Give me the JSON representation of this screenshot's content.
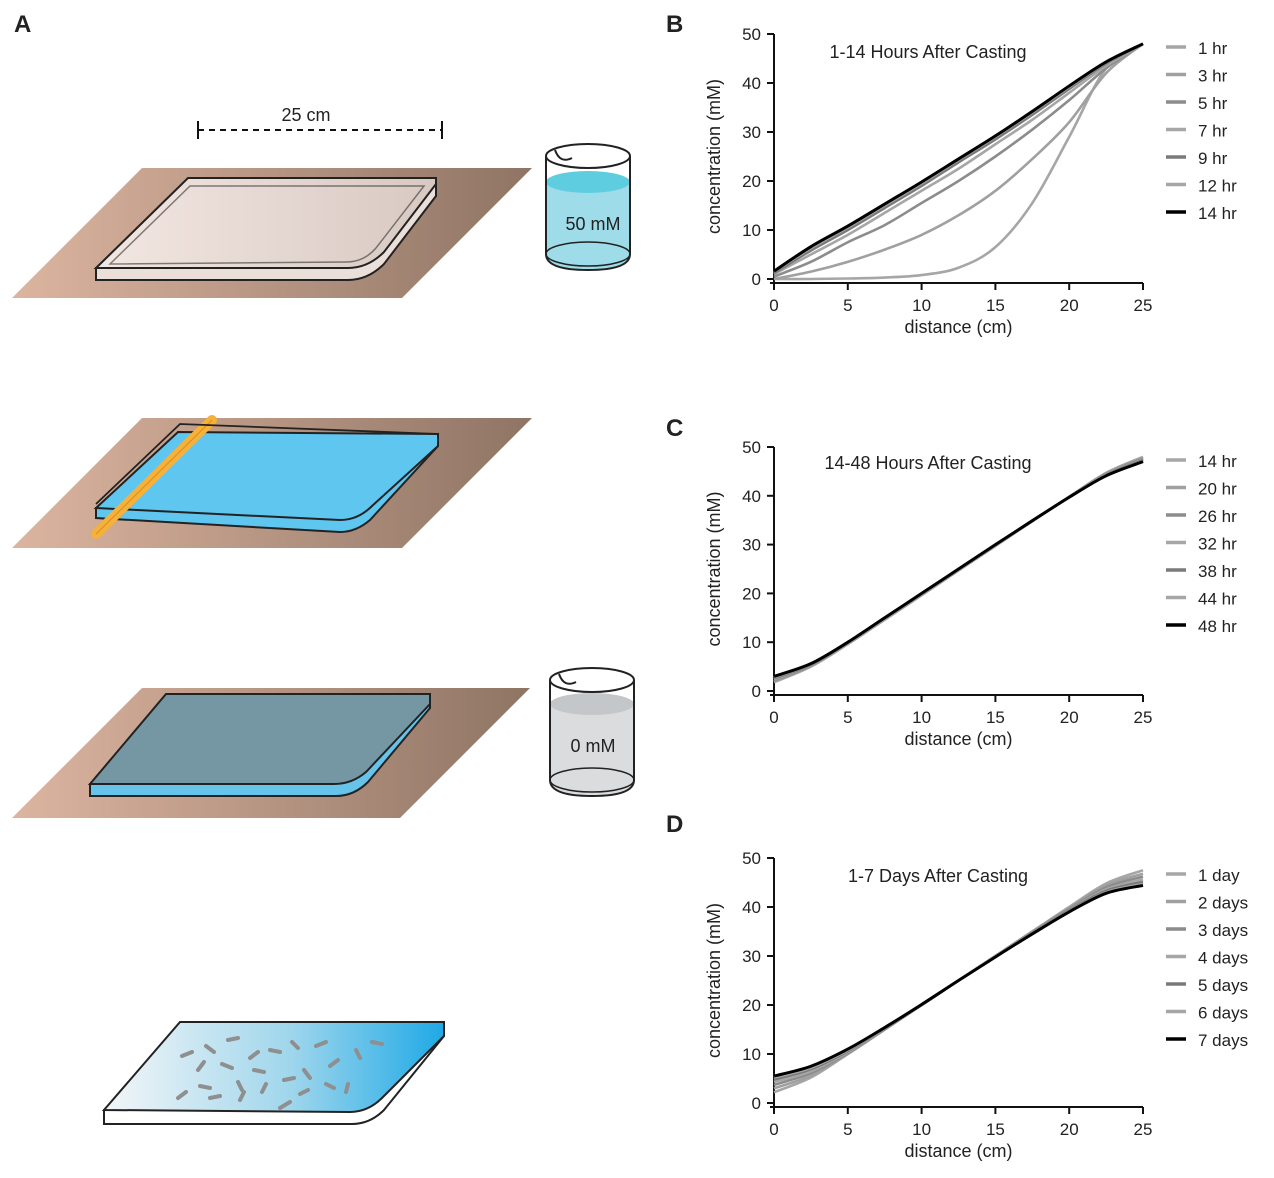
{
  "panel_labels": {
    "a": "A",
    "b": "B",
    "c": "C",
    "d": "D"
  },
  "illustration": {
    "scale_label": "25 cm",
    "beaker_high_label": "50 mM",
    "beaker_low_label": "0 mM",
    "colors": {
      "bench_light": "#d4ab96",
      "bench_dark": "#957a6a",
      "gel_blue": "#5fc8ef",
      "gel_dark": "#7b9ba8",
      "spacer_orange": "#f7b23b",
      "beaker_blue": "#9adce8",
      "beaker_gray": "#d9dbdc",
      "worm_gray": "#8f8f8f"
    }
  },
  "chart_data": [
    {
      "type": "line",
      "title": "1-14 Hours After Casting",
      "xlabel": "distance (cm)",
      "ylabel": "concentration (mM)",
      "xlim": [
        0,
        25
      ],
      "ylim": [
        0,
        50
      ],
      "xticks": [
        "0",
        "5",
        "10",
        "15",
        "20",
        "25"
      ],
      "yticks": [
        "0",
        "10",
        "20",
        "30",
        "40",
        "50"
      ],
      "legend_position": "right",
      "x": [
        0,
        2.5,
        5,
        7.5,
        10,
        12.5,
        15,
        17.5,
        20,
        22.5,
        25
      ],
      "series": [
        {
          "name": "1 hr",
          "color": "#a6a6a6",
          "values": [
            0,
            0,
            0.1,
            0.3,
            0.8,
            2.3,
            6.5,
            15.5,
            29,
            43,
            48
          ]
        },
        {
          "name": "3 hr",
          "color": "#a0a0a0",
          "values": [
            0,
            1.5,
            3.5,
            6,
            9,
            13,
            18,
            24.5,
            32,
            42,
            48
          ]
        },
        {
          "name": "5 hr",
          "color": "#8c8c8c",
          "values": [
            0.5,
            3.5,
            7.5,
            11,
            15.5,
            20,
            25,
            30.5,
            36.5,
            43,
            48
          ]
        },
        {
          "name": "7 hr",
          "color": "#a6a6a6",
          "values": [
            1,
            5,
            9,
            13.5,
            18,
            22.5,
            27.5,
            32.5,
            38,
            43.5,
            48
          ]
        },
        {
          "name": "9 hr",
          "color": "#7a7a7a",
          "values": [
            1.2,
            5.8,
            10,
            14.5,
            19,
            23.8,
            28.5,
            33.5,
            38.8,
            44,
            48
          ]
        },
        {
          "name": "12 hr",
          "color": "#a6a6a6",
          "values": [
            1.5,
            6.3,
            10.5,
            15,
            19.5,
            24.3,
            29,
            34,
            39.2,
            44.2,
            48
          ]
        },
        {
          "name": "14 hr",
          "color": "#000000",
          "values": [
            1.6,
            6.6,
            10.8,
            15.3,
            19.8,
            24.5,
            29.2,
            34.2,
            39.4,
            44.3,
            48
          ]
        }
      ]
    },
    {
      "type": "line",
      "title": "14-48 Hours After Casting",
      "xlabel": "distance (cm)",
      "ylabel": "concentration (mM)",
      "xlim": [
        0,
        25
      ],
      "ylim": [
        0,
        50
      ],
      "xticks": [
        "0",
        "5",
        "10",
        "15",
        "20",
        "25"
      ],
      "yticks": [
        "0",
        "10",
        "20",
        "30",
        "40",
        "50"
      ],
      "legend_position": "right",
      "x": [
        0,
        2.5,
        5,
        7.5,
        10,
        12.5,
        15,
        17.5,
        20,
        22.5,
        25
      ],
      "series": [
        {
          "name": "14 hr",
          "color": "#a6a6a6",
          "values": [
            1.8,
            5,
            9.6,
            14.6,
            19.6,
            24.7,
            29.7,
            34.8,
            39.8,
            44.7,
            48
          ]
        },
        {
          "name": "20 hr",
          "color": "#a0a0a0",
          "values": [
            2,
            5.1,
            9.7,
            14.7,
            19.7,
            24.7,
            29.8,
            34.8,
            39.8,
            44.6,
            47.8
          ]
        },
        {
          "name": "26 hr",
          "color": "#8c8c8c",
          "values": [
            2.2,
            5.2,
            9.8,
            14.8,
            19.8,
            24.8,
            29.8,
            34.8,
            39.8,
            44.5,
            47.6
          ]
        },
        {
          "name": "32 hr",
          "color": "#a6a6a6",
          "values": [
            2.4,
            5.3,
            9.8,
            14.8,
            19.8,
            24.8,
            29.8,
            34.8,
            39.7,
            44.4,
            47.4
          ]
        },
        {
          "name": "38 hr",
          "color": "#7a7a7a",
          "values": [
            2.6,
            5.4,
            9.9,
            14.9,
            19.9,
            24.9,
            29.9,
            34.8,
            39.7,
            44.3,
            47.3
          ]
        },
        {
          "name": "44 hr",
          "color": "#a6a6a6",
          "values": [
            2.8,
            5.5,
            9.9,
            14.9,
            19.9,
            24.9,
            29.9,
            34.8,
            39.7,
            44.2,
            47.1
          ]
        },
        {
          "name": "48 hr",
          "color": "#000000",
          "values": [
            3,
            5.6,
            10,
            15,
            20,
            25,
            30,
            34.9,
            39.7,
            44.1,
            47
          ]
        }
      ]
    },
    {
      "type": "line",
      "title": "1-7 Days After Casting",
      "xlabel": "distance (cm)",
      "ylabel": "concentration (mM)",
      "xlim": [
        0,
        25
      ],
      "ylim": [
        0,
        50
      ],
      "xticks": [
        "0",
        "5",
        "10",
        "15",
        "20",
        "25"
      ],
      "yticks": [
        "0",
        "10",
        "20",
        "30",
        "40",
        "50"
      ],
      "legend_position": "right",
      "x": [
        0,
        2.5,
        5,
        7.5,
        10,
        12.5,
        15,
        17.5,
        20,
        22.5,
        25
      ],
      "series": [
        {
          "name": "1 day",
          "color": "#a6a6a6",
          "values": [
            2.2,
            5.2,
            10,
            15,
            20,
            25,
            30,
            35,
            40,
            44.8,
            47.5
          ]
        },
        {
          "name": "2 days",
          "color": "#a0a0a0",
          "values": [
            3,
            5.6,
            10,
            15,
            20,
            25,
            30,
            35,
            39.8,
            44.4,
            46.8
          ]
        },
        {
          "name": "3 days",
          "color": "#8c8c8c",
          "values": [
            3.7,
            6.1,
            10.2,
            15,
            20,
            25,
            30,
            34.9,
            39.6,
            44,
            46.2
          ]
        },
        {
          "name": "4 days",
          "color": "#a6a6a6",
          "values": [
            4.3,
            6.5,
            10.4,
            15.1,
            20,
            25,
            29.9,
            34.8,
            39.4,
            43.6,
            45.6
          ]
        },
        {
          "name": "5 days",
          "color": "#7a7a7a",
          "values": [
            4.8,
            6.9,
            10.6,
            15.2,
            20,
            25,
            29.9,
            34.7,
            39.3,
            43.3,
            45.1
          ]
        },
        {
          "name": "6 days",
          "color": "#a6a6a6",
          "values": [
            5.2,
            7.2,
            10.8,
            15.3,
            20.1,
            25,
            29.9,
            34.6,
            39.1,
            43,
            44.7
          ]
        },
        {
          "name": "7 days",
          "color": "#000000",
          "values": [
            5.5,
            7.5,
            11,
            15.4,
            20.1,
            25,
            29.8,
            34.5,
            39,
            42.8,
            44.4
          ]
        }
      ]
    }
  ]
}
